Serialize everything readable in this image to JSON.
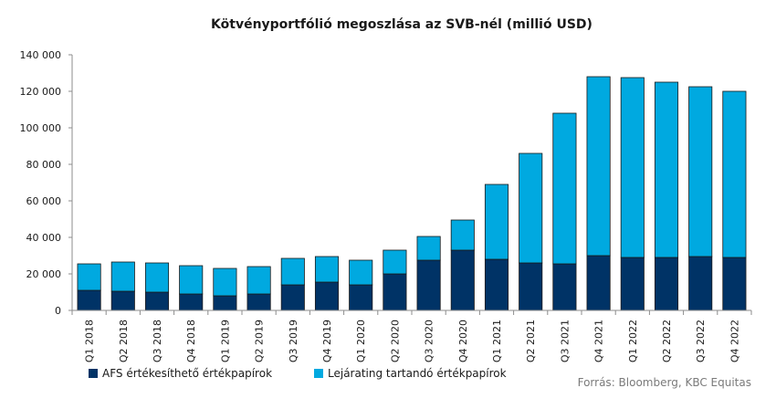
{
  "chart_data": {
    "type": "bar",
    "stacked": true,
    "title": "Kötvényportfólió megoszlása az SVB-nél (millió USD)",
    "source": "Forrás: Bloomberg, KBC Equitas",
    "categories": [
      "Q1 2018",
      "Q2 2018",
      "Q3 2018",
      "Q4 2018",
      "Q1 2019",
      "Q2 2019",
      "Q3 2019",
      "Q4 2019",
      "Q1 2020",
      "Q2 2020",
      "Q3 2020",
      "Q4 2020",
      "Q1 2021",
      "Q2 2021",
      "Q3 2021",
      "Q4 2021",
      "Q1 2022",
      "Q2 2022",
      "Q3 2022",
      "Q4 2022"
    ],
    "series": [
      {
        "name": "AFS értékesíthető értékpapírok",
        "color": "#003366",
        "values": [
          11000,
          10500,
          10000,
          9000,
          8000,
          9000,
          14000,
          15500,
          14000,
          20000,
          27500,
          33000,
          28000,
          26000,
          25500,
          30000,
          29000,
          29000,
          29500,
          29000
        ]
      },
      {
        "name": "Lejárating tartandó értékpapírok",
        "color": "#00a9e0",
        "values": [
          14500,
          16000,
          16000,
          15500,
          15000,
          15000,
          14500,
          14000,
          13500,
          13000,
          13000,
          16500,
          41000,
          60000,
          82500,
          98000,
          98500,
          96000,
          93000,
          91000
        ]
      }
    ],
    "y_ticks": [
      "0",
      "20 000",
      "40 000",
      "60 000",
      "80 000",
      "100 000",
      "120 000",
      "140 000"
    ],
    "ylim": [
      0,
      140000
    ],
    "ytick_step": 20000,
    "grid": false,
    "legend": "bottom-left"
  }
}
